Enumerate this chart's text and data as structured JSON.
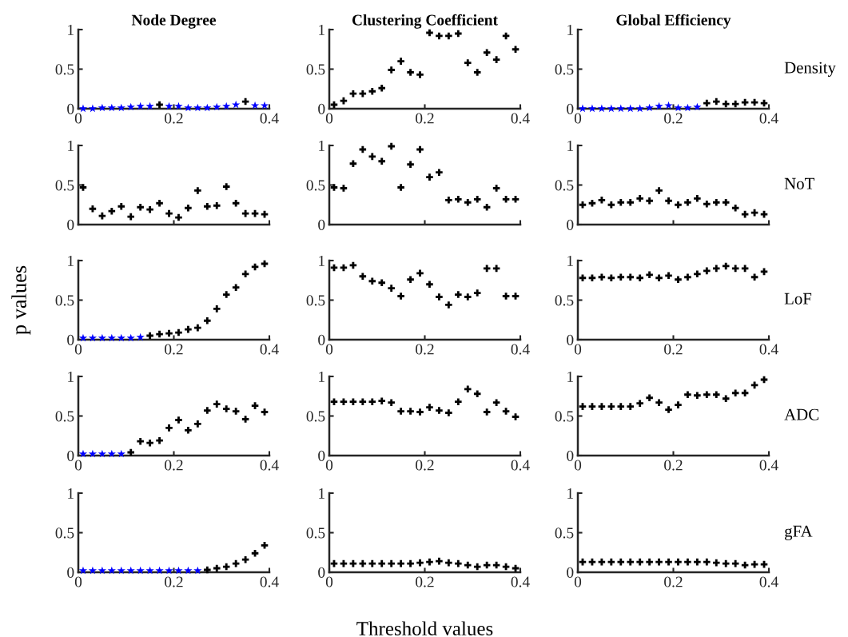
{
  "chart_data": [
    {
      "type": "scatter",
      "title": "Node Degree",
      "xlim": [
        0,
        0.4
      ],
      "ylim": [
        0,
        1
      ],
      "xticks": [
        0,
        0.2,
        0.4
      ],
      "yticks": [
        0,
        0.5,
        1
      ],
      "series": [
        {
          "color": "#0000ff",
          "marker": "star",
          "x": [
            0.01,
            0.03,
            0.05,
            0.07,
            0.09,
            0.11,
            0.13,
            0.15,
            0.19,
            0.21,
            0.23,
            0.25,
            0.27,
            0.29,
            0.31,
            0.33,
            0.37,
            0.39
          ],
          "values": [
            0,
            0,
            0.01,
            0.01,
            0.01,
            0.02,
            0.03,
            0.03,
            0.03,
            0.03,
            0.01,
            0.01,
            0.01,
            0.02,
            0.03,
            0.05,
            0.04,
            0.04
          ]
        },
        {
          "color": "#000000",
          "marker": "cross",
          "x": [
            0.17,
            0.35
          ],
          "values": [
            0.05,
            0.09
          ]
        }
      ]
    },
    {
      "type": "scatter",
      "title": "Clustering Coefficient",
      "xlim": [
        0,
        0.4
      ],
      "ylim": [
        0,
        1
      ],
      "xticks": [
        0,
        0.2,
        0.4
      ],
      "yticks": [
        0,
        0.5,
        1
      ],
      "series": [
        {
          "color": "#000000",
          "marker": "cross",
          "x": [
            0.01,
            0.03,
            0.05,
            0.07,
            0.09,
            0.11,
            0.13,
            0.15,
            0.17,
            0.19,
            0.21,
            0.23,
            0.25,
            0.27,
            0.29,
            0.31,
            0.33,
            0.35,
            0.37,
            0.39
          ],
          "values": [
            0.05,
            0.1,
            0.19,
            0.19,
            0.22,
            0.26,
            0.49,
            0.6,
            0.46,
            0.43,
            0.96,
            0.92,
            0.92,
            0.95,
            0.58,
            0.46,
            0.71,
            0.62,
            0.92,
            0.75
          ]
        }
      ]
    },
    {
      "type": "scatter",
      "title": "Global Efficiency",
      "annotations": [
        "Density"
      ],
      "xlim": [
        0,
        0.4
      ],
      "ylim": [
        0,
        1
      ],
      "xticks": [
        0,
        0.2,
        0.4
      ],
      "yticks": [
        0,
        0.5,
        1
      ],
      "series": [
        {
          "color": "#0000ff",
          "marker": "star",
          "x": [
            0.01,
            0.03,
            0.05,
            0.07,
            0.09,
            0.11,
            0.13,
            0.15,
            0.17,
            0.19,
            0.21,
            0.23,
            0.25
          ],
          "values": [
            0,
            0,
            0,
            0,
            0,
            0,
            0,
            0.01,
            0.03,
            0.04,
            0.01,
            0.01,
            0.02
          ]
        },
        {
          "color": "#000000",
          "marker": "cross",
          "x": [
            0.27,
            0.29,
            0.31,
            0.33,
            0.35,
            0.37,
            0.39
          ],
          "values": [
            0.07,
            0.09,
            0.06,
            0.06,
            0.08,
            0.08,
            0.07
          ]
        }
      ]
    },
    {
      "type": "scatter",
      "xlim": [
        0,
        0.4
      ],
      "ylim": [
        0,
        1
      ],
      "xticks": [
        0,
        0.2,
        0.4
      ],
      "yticks": [
        0,
        0.5,
        1
      ],
      "tick_labels": "y",
      "series": [
        {
          "color": "#000000",
          "marker": "cross",
          "x": [
            0.01,
            0.03,
            0.05,
            0.07,
            0.09,
            0.11,
            0.13,
            0.15,
            0.17,
            0.19,
            0.21,
            0.23,
            0.25,
            0.27,
            0.29,
            0.31,
            0.33,
            0.35,
            0.37,
            0.39
          ],
          "values": [
            0.47,
            0.2,
            0.11,
            0.17,
            0.23,
            0.1,
            0.22,
            0.19,
            0.27,
            0.14,
            0.09,
            0.21,
            0.43,
            0.23,
            0.24,
            0.48,
            0.27,
            0.14,
            0.14,
            0.13
          ]
        }
      ]
    },
    {
      "type": "scatter",
      "xlim": [
        0,
        0.4
      ],
      "ylim": [
        0,
        1
      ],
      "xticks": [
        0,
        0.2,
        0.4
      ],
      "yticks": [
        0,
        0.5,
        1
      ],
      "tick_labels": "y",
      "series": [
        {
          "color": "#000000",
          "marker": "cross",
          "x": [
            0.01,
            0.03,
            0.05,
            0.07,
            0.09,
            0.11,
            0.13,
            0.15,
            0.17,
            0.19,
            0.21,
            0.23,
            0.25,
            0.27,
            0.29,
            0.31,
            0.33,
            0.35,
            0.37,
            0.39
          ],
          "values": [
            0.47,
            0.46,
            0.77,
            0.95,
            0.86,
            0.8,
            0.99,
            0.47,
            0.76,
            0.95,
            0.6,
            0.66,
            0.31,
            0.32,
            0.28,
            0.32,
            0.22,
            0.46,
            0.32,
            0.32
          ]
        }
      ]
    },
    {
      "type": "scatter",
      "annotations": [
        "NoT"
      ],
      "xlim": [
        0,
        0.4
      ],
      "ylim": [
        0,
        1
      ],
      "xticks": [
        0,
        0.2,
        0.4
      ],
      "yticks": [
        0,
        0.5,
        1
      ],
      "tick_labels": "y",
      "series": [
        {
          "color": "#000000",
          "marker": "cross",
          "x": [
            0.01,
            0.03,
            0.05,
            0.07,
            0.09,
            0.11,
            0.13,
            0.15,
            0.17,
            0.19,
            0.21,
            0.23,
            0.25,
            0.27,
            0.29,
            0.31,
            0.33,
            0.35,
            0.37,
            0.39
          ],
          "values": [
            0.25,
            0.27,
            0.31,
            0.25,
            0.28,
            0.28,
            0.33,
            0.3,
            0.43,
            0.3,
            0.25,
            0.28,
            0.33,
            0.26,
            0.28,
            0.28,
            0.21,
            0.13,
            0.15,
            0.13
          ]
        }
      ]
    },
    {
      "type": "scatter",
      "ylabel": "p values",
      "xlim": [
        0,
        0.4
      ],
      "ylim": [
        0,
        1
      ],
      "xticks": [
        0,
        0.2,
        0.4
      ],
      "yticks": [
        0,
        0.5,
        1
      ],
      "series": [
        {
          "color": "#0000ff",
          "marker": "star",
          "x": [
            0.01,
            0.03,
            0.05,
            0.07,
            0.09,
            0.11,
            0.13
          ],
          "values": [
            0.02,
            0.02,
            0.02,
            0.02,
            0.02,
            0.02,
            0.03
          ]
        },
        {
          "color": "#000000",
          "marker": "cross",
          "x": [
            0.15,
            0.17,
            0.19,
            0.21,
            0.23,
            0.25,
            0.27,
            0.29,
            0.31,
            0.33,
            0.35,
            0.37,
            0.39
          ],
          "values": [
            0.05,
            0.07,
            0.08,
            0.09,
            0.13,
            0.15,
            0.24,
            0.39,
            0.57,
            0.66,
            0.83,
            0.92,
            0.96
          ]
        }
      ]
    },
    {
      "type": "scatter",
      "xlim": [
        0,
        0.4
      ],
      "ylim": [
        0,
        1
      ],
      "xticks": [
        0,
        0.2,
        0.4
      ],
      "yticks": [
        0,
        0.5,
        1
      ],
      "series": [
        {
          "color": "#000000",
          "marker": "cross",
          "x": [
            0.01,
            0.03,
            0.05,
            0.07,
            0.09,
            0.11,
            0.13,
            0.15,
            0.17,
            0.19,
            0.21,
            0.23,
            0.25,
            0.27,
            0.29,
            0.31,
            0.33,
            0.35,
            0.37,
            0.39
          ],
          "values": [
            0.91,
            0.91,
            0.94,
            0.8,
            0.74,
            0.72,
            0.65,
            0.55,
            0.76,
            0.84,
            0.7,
            0.54,
            0.44,
            0.57,
            0.54,
            0.59,
            0.9,
            0.9,
            0.55,
            0.55
          ]
        }
      ]
    },
    {
      "type": "scatter",
      "annotations": [
        "LoF"
      ],
      "xlim": [
        0,
        0.4
      ],
      "ylim": [
        0,
        1
      ],
      "xticks": [
        0,
        0.2,
        0.4
      ],
      "yticks": [
        0,
        0.5,
        1
      ],
      "series": [
        {
          "color": "#000000",
          "marker": "cross",
          "x": [
            0.01,
            0.03,
            0.05,
            0.07,
            0.09,
            0.11,
            0.13,
            0.15,
            0.17,
            0.19,
            0.21,
            0.23,
            0.25,
            0.27,
            0.29,
            0.31,
            0.33,
            0.35,
            0.37,
            0.39
          ],
          "values": [
            0.78,
            0.78,
            0.79,
            0.78,
            0.79,
            0.79,
            0.78,
            0.82,
            0.78,
            0.81,
            0.76,
            0.79,
            0.83,
            0.87,
            0.9,
            0.93,
            0.9,
            0.9,
            0.79,
            0.86
          ]
        }
      ]
    },
    {
      "type": "scatter",
      "xlim": [
        0,
        0.4
      ],
      "ylim": [
        0,
        1
      ],
      "xticks": [
        0,
        0.2,
        0.4
      ],
      "yticks": [
        0,
        0.5,
        1
      ],
      "series": [
        {
          "color": "#0000ff",
          "marker": "star",
          "x": [
            0.01,
            0.03,
            0.05,
            0.07,
            0.09
          ],
          "values": [
            0.02,
            0.02,
            0.02,
            0.02,
            0.02
          ]
        },
        {
          "color": "#000000",
          "marker": "cross",
          "x": [
            0.11,
            0.13,
            0.15,
            0.17,
            0.19,
            0.21,
            0.23,
            0.25,
            0.27,
            0.29,
            0.31,
            0.33,
            0.35,
            0.37,
            0.39
          ],
          "values": [
            0.04,
            0.18,
            0.16,
            0.19,
            0.35,
            0.45,
            0.32,
            0.4,
            0.57,
            0.65,
            0.59,
            0.56,
            0.46,
            0.63,
            0.55
          ]
        }
      ]
    },
    {
      "type": "scatter",
      "xlim": [
        0,
        0.4
      ],
      "ylim": [
        0,
        1
      ],
      "xticks": [
        0,
        0.2,
        0.4
      ],
      "yticks": [
        0,
        0.5,
        1
      ],
      "series": [
        {
          "color": "#000000",
          "marker": "cross",
          "x": [
            0.01,
            0.03,
            0.05,
            0.07,
            0.09,
            0.11,
            0.13,
            0.15,
            0.17,
            0.19,
            0.21,
            0.23,
            0.25,
            0.27,
            0.29,
            0.31,
            0.33,
            0.35,
            0.37,
            0.39
          ],
          "values": [
            0.68,
            0.68,
            0.68,
            0.68,
            0.68,
            0.69,
            0.67,
            0.56,
            0.56,
            0.55,
            0.61,
            0.57,
            0.54,
            0.68,
            0.84,
            0.78,
            0.55,
            0.67,
            0.56,
            0.49
          ]
        }
      ]
    },
    {
      "type": "scatter",
      "annotations": [
        "ADC"
      ],
      "xlim": [
        0,
        0.4
      ],
      "ylim": [
        0,
        1
      ],
      "xticks": [
        0,
        0.2,
        0.4
      ],
      "yticks": [
        0,
        0.5,
        1
      ],
      "series": [
        {
          "color": "#000000",
          "marker": "cross",
          "x": [
            0.01,
            0.03,
            0.05,
            0.07,
            0.09,
            0.11,
            0.13,
            0.15,
            0.17,
            0.19,
            0.21,
            0.23,
            0.25,
            0.27,
            0.29,
            0.31,
            0.33,
            0.35,
            0.37,
            0.39
          ],
          "values": [
            0.62,
            0.62,
            0.62,
            0.62,
            0.62,
            0.62,
            0.66,
            0.73,
            0.67,
            0.58,
            0.64,
            0.77,
            0.76,
            0.77,
            0.77,
            0.72,
            0.79,
            0.79,
            0.89,
            0.96
          ]
        }
      ]
    },
    {
      "type": "scatter",
      "xlim": [
        0,
        0.4
      ],
      "ylim": [
        0,
        1
      ],
      "xticks": [
        0,
        0.2,
        0.4
      ],
      "yticks": [
        0,
        0.5,
        1
      ],
      "series": [
        {
          "color": "#0000ff",
          "marker": "star",
          "x": [
            0.01,
            0.03,
            0.05,
            0.07,
            0.09,
            0.11,
            0.13,
            0.15,
            0.17,
            0.19,
            0.21,
            0.23,
            0.25
          ],
          "values": [
            0.02,
            0.02,
            0.02,
            0.02,
            0.02,
            0.02,
            0.02,
            0.02,
            0.02,
            0.02,
            0.02,
            0.02,
            0.02
          ]
        },
        {
          "color": "#000000",
          "marker": "cross",
          "x": [
            0.27,
            0.29,
            0.31,
            0.33,
            0.35,
            0.37,
            0.39
          ],
          "values": [
            0.03,
            0.05,
            0.07,
            0.11,
            0.16,
            0.24,
            0.34
          ]
        }
      ]
    },
    {
      "type": "scatter",
      "xlabel": "Threshold values",
      "xlim": [
        0,
        0.4
      ],
      "ylim": [
        0,
        1
      ],
      "xticks": [
        0,
        0.2,
        0.4
      ],
      "yticks": [
        0,
        0.5,
        1
      ],
      "series": [
        {
          "color": "#000000",
          "marker": "cross",
          "x": [
            0.01,
            0.03,
            0.05,
            0.07,
            0.09,
            0.11,
            0.13,
            0.15,
            0.17,
            0.19,
            0.21,
            0.23,
            0.25,
            0.27,
            0.29,
            0.31,
            0.33,
            0.35,
            0.37,
            0.39
          ],
          "values": [
            0.11,
            0.11,
            0.11,
            0.11,
            0.11,
            0.11,
            0.11,
            0.11,
            0.11,
            0.12,
            0.13,
            0.14,
            0.12,
            0.11,
            0.09,
            0.07,
            0.09,
            0.09,
            0.07,
            0.05
          ]
        }
      ]
    },
    {
      "type": "scatter",
      "annotations": [
        "gFA"
      ],
      "xlim": [
        0,
        0.4
      ],
      "ylim": [
        0,
        1
      ],
      "xticks": [
        0,
        0.2,
        0.4
      ],
      "yticks": [
        0,
        0.5,
        1
      ],
      "series": [
        {
          "color": "#000000",
          "marker": "cross",
          "x": [
            0.01,
            0.03,
            0.05,
            0.07,
            0.09,
            0.11,
            0.13,
            0.15,
            0.17,
            0.19,
            0.21,
            0.23,
            0.25,
            0.27,
            0.29,
            0.31,
            0.33,
            0.35,
            0.37,
            0.39
          ],
          "values": [
            0.13,
            0.13,
            0.13,
            0.13,
            0.13,
            0.13,
            0.13,
            0.13,
            0.13,
            0.13,
            0.13,
            0.13,
            0.13,
            0.13,
            0.12,
            0.11,
            0.11,
            0.09,
            0.1,
            0.1
          ]
        }
      ]
    }
  ]
}
